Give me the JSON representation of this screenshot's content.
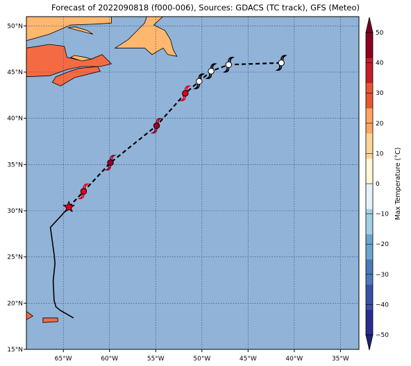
{
  "title": "Forecast of 2022090818 (f000-006), Sources: GDACS (TC track), GFS (Meteo)",
  "map": {
    "lon_range": [
      -69,
      -33
    ],
    "lat_range": [
      15,
      51
    ],
    "x_ticks": [
      {
        "value": -65,
        "label": "65°W"
      },
      {
        "value": -60,
        "label": "60°W"
      },
      {
        "value": -55,
        "label": "55°W"
      },
      {
        "value": -50,
        "label": "50°W"
      },
      {
        "value": -45,
        "label": "45°W"
      },
      {
        "value": -40,
        "label": "40°W"
      },
      {
        "value": -35,
        "label": "35°W"
      }
    ],
    "y_ticks": [
      {
        "value": 15,
        "label": "15°N"
      },
      {
        "value": 20,
        "label": "20°N"
      },
      {
        "value": 25,
        "label": "25°N"
      },
      {
        "value": 30,
        "label": "30°N"
      },
      {
        "value": 35,
        "label": "35°N"
      },
      {
        "value": 40,
        "label": "40°N"
      },
      {
        "value": 45,
        "label": "45°N"
      },
      {
        "value": 50,
        "label": "50°N"
      }
    ],
    "grid": true,
    "colors": {
      "ocean": "#91b3d8",
      "land_warm": "#fdb76e",
      "land_hot": "#f46b43",
      "track_past": "#000000",
      "track_forecast": "#000000",
      "storm_red": "#e3001b",
      "storm_darkred": "#9b0028",
      "storm_white": "#ffffff"
    },
    "past_track": [
      [
        -63.9,
        18.4
      ],
      [
        -65.3,
        19.2
      ],
      [
        -65.8,
        19.6
      ],
      [
        -66.0,
        20.3
      ],
      [
        -66.1,
        22.4
      ],
      [
        -65.9,
        24.3
      ],
      [
        -66.0,
        25.3
      ],
      [
        -66.4,
        28.2
      ],
      [
        -65.2,
        29.5
      ],
      [
        -64.4,
        30.4
      ]
    ],
    "current_position": {
      "lon": -64.4,
      "lat": 30.4
    },
    "forecast_track": [
      [
        -64.4,
        30.4
      ],
      [
        -62.8,
        32.1
      ],
      [
        -59.9,
        35.2
      ],
      [
        -54.9,
        39.2
      ],
      [
        -51.8,
        42.7
      ],
      [
        -50.3,
        44.0
      ],
      [
        -49.0,
        45.1
      ],
      [
        -47.1,
        45.8
      ],
      [
        -41.4,
        46.0
      ]
    ],
    "forecast_points": [
      {
        "lon": -62.8,
        "lat": 32.1,
        "color": "storm_red"
      },
      {
        "lon": -59.9,
        "lat": 35.2,
        "color": "storm_darkred"
      },
      {
        "lon": -54.9,
        "lat": 39.2,
        "color": "storm_darkred"
      },
      {
        "lon": -51.8,
        "lat": 42.7,
        "color": "storm_red"
      },
      {
        "lon": -50.3,
        "lat": 44.0,
        "color": "storm_white"
      },
      {
        "lon": -49.0,
        "lat": 45.1,
        "color": "storm_white"
      },
      {
        "lon": -47.1,
        "lat": 45.8,
        "color": "storm_white"
      },
      {
        "lon": -41.4,
        "lat": 46.0,
        "color": "storm_white"
      }
    ],
    "land": [
      {
        "name": "new-brunswick-nova-scotia",
        "color": "land_hot",
        "coords": [
          [
            -69,
            44.5
          ],
          [
            -66.5,
            44.6
          ],
          [
            -64.5,
            45.3
          ],
          [
            -63.0,
            45.6
          ],
          [
            -61.0,
            45.6
          ],
          [
            -59.8,
            45.9
          ],
          [
            -60.8,
            46.9
          ],
          [
            -62.0,
            46.4
          ],
          [
            -63.3,
            46.3
          ],
          [
            -64.6,
            46.6
          ],
          [
            -64.9,
            47.8
          ],
          [
            -66.5,
            48.0
          ],
          [
            -69,
            47.6
          ]
        ]
      },
      {
        "name": "nova-scotia-south",
        "color": "land_hot",
        "coords": [
          [
            -66.2,
            43.9
          ],
          [
            -65.3,
            43.5
          ],
          [
            -63.8,
            44.4
          ],
          [
            -61.0,
            45.1
          ],
          [
            -61.3,
            45.6
          ],
          [
            -63.3,
            45.4
          ],
          [
            -64.3,
            45.1
          ],
          [
            -65.8,
            44.5
          ]
        ]
      },
      {
        "name": "quebec-north-shore",
        "color": "land_warm",
        "coords": [
          [
            -69,
            48.4
          ],
          [
            -66.5,
            49.1
          ],
          [
            -64.2,
            50.1
          ],
          [
            -61.5,
            50.2
          ],
          [
            -59.8,
            50.3
          ],
          [
            -59.8,
            51.5
          ],
          [
            -69,
            51.5
          ]
        ]
      },
      {
        "name": "newfoundland",
        "color": "land_warm",
        "coords": [
          [
            -59.4,
            47.6
          ],
          [
            -58.0,
            48.5
          ],
          [
            -57.0,
            49.5
          ],
          [
            -56.2,
            50.3
          ],
          [
            -55.8,
            51.5
          ],
          [
            -53.7,
            51.5
          ],
          [
            -55.2,
            50.1
          ],
          [
            -54.0,
            49.5
          ],
          [
            -53.4,
            48.5
          ],
          [
            -53.1,
            47.4
          ],
          [
            -52.7,
            46.7
          ],
          [
            -53.7,
            46.9
          ],
          [
            -54.2,
            47.6
          ],
          [
            -55.4,
            46.9
          ],
          [
            -56.2,
            47.6
          ],
          [
            -58.2,
            47.6
          ]
        ]
      },
      {
        "name": "anticosti",
        "color": "land_warm",
        "coords": [
          [
            -64.5,
            49.8
          ],
          [
            -63.0,
            49.4
          ],
          [
            -61.8,
            49.1
          ],
          [
            -62.4,
            49.5
          ],
          [
            -63.7,
            49.9
          ]
        ]
      },
      {
        "name": "pei",
        "color": "land_warm",
        "coords": [
          [
            -64.2,
            46.6
          ],
          [
            -63.0,
            46.2
          ],
          [
            -62.0,
            46.4
          ],
          [
            -62.6,
            46.6
          ],
          [
            -63.8,
            46.8
          ]
        ]
      },
      {
        "name": "hispaniola",
        "color": "land_hot",
        "coords": [
          [
            -69,
            18.2
          ],
          [
            -68.3,
            18.6
          ],
          [
            -69,
            19.1
          ]
        ]
      },
      {
        "name": "puerto-rico",
        "color": "land_hot",
        "coords": [
          [
            -67.2,
            18.4
          ],
          [
            -65.6,
            18.4
          ],
          [
            -65.6,
            18.0
          ],
          [
            -67.2,
            17.9
          ]
        ]
      }
    ]
  },
  "colorbar": {
    "label": "Max Temperature (°C)",
    "range": [
      -50,
      50
    ],
    "ticks": [
      -50,
      -40,
      -30,
      -20,
      -10,
      0,
      10,
      20,
      30,
      40,
      50
    ],
    "tick_labels": [
      "−50",
      "−40",
      "−30",
      "−20",
      "−10",
      "0",
      "10",
      "20",
      "30",
      "40",
      "50"
    ],
    "bands": [
      "#2a2d8e",
      "#3a4fa5",
      "#4a7ab8",
      "#6aa6cf",
      "#a5cfe3",
      "#e6f2f8",
      "#fff6d5",
      "#fdd598",
      "#fca660",
      "#e85533",
      "#c41e2a",
      "#8a0223"
    ],
    "under_color": "#1f2375",
    "over_color": "#7a0020"
  }
}
